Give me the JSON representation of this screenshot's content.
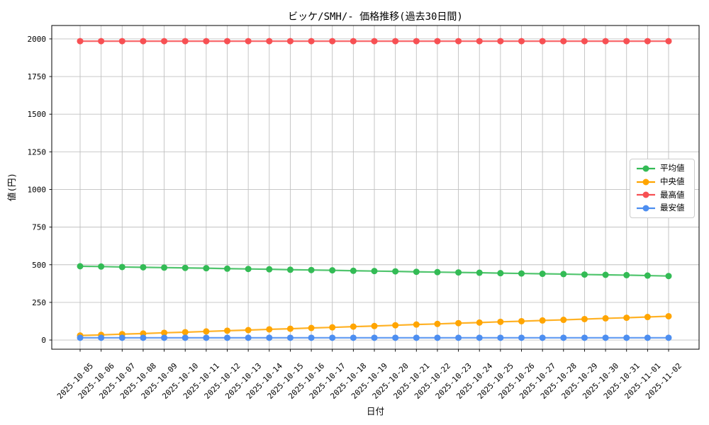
{
  "chart_data": {
    "type": "line",
    "title": "ビッケ/SMH/- 価格推移(過去30日間)",
    "xlabel": "日付",
    "ylabel": "値(円)",
    "grid": true,
    "legend_position": "right-middle",
    "ylim": [
      -61,
      2089
    ],
    "yticks": [
      0,
      250,
      500,
      750,
      1000,
      1250,
      1500,
      1750,
      2000
    ],
    "x": [
      "2025-10-05",
      "2025-10-06",
      "2025-10-07",
      "2025-10-08",
      "2025-10-09",
      "2025-10-10",
      "2025-10-11",
      "2025-10-12",
      "2025-10-13",
      "2025-10-14",
      "2025-10-15",
      "2025-10-16",
      "2025-10-17",
      "2025-10-18",
      "2025-10-19",
      "2025-10-20",
      "2025-10-21",
      "2025-10-22",
      "2025-10-23",
      "2025-10-24",
      "2025-10-25",
      "2025-10-26",
      "2025-10-27",
      "2025-10-28",
      "2025-10-29",
      "2025-10-30",
      "2025-10-31",
      "2025-11-01",
      "2025-11-02"
    ],
    "series": [
      {
        "key": "average",
        "name": "平均値",
        "color": "#33BB55",
        "values": [
          490,
          488,
          485,
          483,
          481,
          479,
          477,
          474,
          472,
          470,
          467,
          465,
          463,
          460,
          458,
          456,
          453,
          451,
          449,
          447,
          444,
          442,
          440,
          438,
          435,
          433,
          431,
          428,
          425
        ]
      },
      {
        "key": "median",
        "name": "中央値",
        "color": "#FFA500",
        "values": [
          30,
          34,
          39,
          43,
          48,
          52,
          57,
          62,
          66,
          71,
          75,
          80,
          84,
          89,
          93,
          98,
          103,
          107,
          112,
          116,
          121,
          125,
          130,
          134,
          139,
          144,
          148,
          153,
          158
        ]
      },
      {
        "key": "max",
        "name": "最高値",
        "color": "#F75053",
        "values": [
          1985,
          1985,
          1985,
          1985,
          1985,
          1985,
          1985,
          1985,
          1985,
          1985,
          1985,
          1985,
          1985,
          1985,
          1985,
          1985,
          1985,
          1985,
          1985,
          1985,
          1985,
          1985,
          1985,
          1985,
          1985,
          1985,
          1985,
          1985,
          1985
        ]
      },
      {
        "key": "min",
        "name": "最安値",
        "color": "#4D8EF0",
        "values": [
          15,
          15,
          15,
          15,
          15,
          15,
          15,
          15,
          15,
          15,
          15,
          15,
          15,
          15,
          15,
          15,
          15,
          15,
          15,
          15,
          15,
          15,
          15,
          15,
          15,
          15,
          15,
          15,
          15
        ]
      }
    ]
  },
  "colors": {
    "background": "#ffffff",
    "grid": "#c0c0c0",
    "axis": "#000000",
    "tick_text": "#000000",
    "legend_border": "#cccccc"
  }
}
